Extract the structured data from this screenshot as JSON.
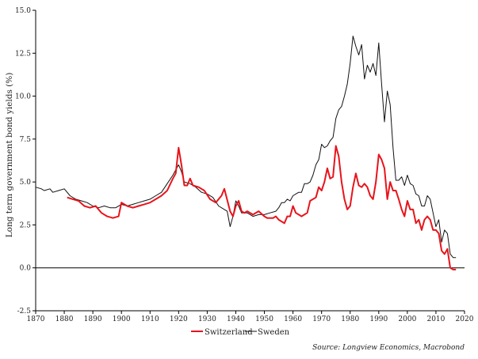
{
  "chart_data": {
    "type": "line",
    "title": "",
    "xlabel": "",
    "ylabel": "Long term government bond yields (%)",
    "xlim": [
      1870,
      2020
    ],
    "ylim": [
      -2.5,
      15.0
    ],
    "x_ticks": [
      1870,
      1880,
      1890,
      1900,
      1910,
      1920,
      1930,
      1940,
      1950,
      1960,
      1970,
      1980,
      1990,
      2000,
      2010,
      2020
    ],
    "y_ticks": [
      -2.5,
      0.0,
      2.5,
      5.0,
      7.5,
      10.0,
      12.5,
      15.0
    ],
    "y_tick_labels": [
      "-2.5",
      "0.0",
      "2.5",
      "5.0",
      "7.5",
      "10.0",
      "12.5",
      "15.0"
    ],
    "grid": false,
    "zero_line": true,
    "series": [
      {
        "name": "Switzerland",
        "color": "#e8141b",
        "x": [
          1881,
          1883,
          1885,
          1887,
          1889,
          1891,
          1893,
          1895,
          1897,
          1899,
          1900,
          1902,
          1904,
          1906,
          1908,
          1910,
          1912,
          1914,
          1916,
          1918,
          1919,
          1920,
          1921,
          1922,
          1923,
          1924,
          1925,
          1927,
          1929,
          1931,
          1933,
          1935,
          1936,
          1938,
          1939,
          1940,
          1941,
          1942,
          1943,
          1944,
          1946,
          1948,
          1950,
          1951,
          1952,
          1953,
          1954,
          1955,
          1956,
          1957,
          1958,
          1959,
          1960,
          1961,
          1962,
          1963,
          1964,
          1965,
          1966,
          1967,
          1968,
          1969,
          1970,
          1971,
          1972,
          1973,
          1974,
          1975,
          1976,
          1977,
          1978,
          1979,
          1980,
          1981,
          1982,
          1983,
          1984,
          1985,
          1986,
          1987,
          1988,
          1989,
          1990,
          1991,
          1992,
          1993,
          1994,
          1995,
          1996,
          1997,
          1998,
          1999,
          2000,
          2001,
          2002,
          2003,
          2004,
          2005,
          2006,
          2007,
          2008,
          2009,
          2010,
          2011,
          2012,
          2013,
          2014,
          2015,
          2016,
          2017
        ],
        "values": [
          4.1,
          4.0,
          3.9,
          3.6,
          3.5,
          3.6,
          3.2,
          3.0,
          2.9,
          3.0,
          3.8,
          3.6,
          3.5,
          3.6,
          3.7,
          3.8,
          4.0,
          4.2,
          4.5,
          5.2,
          5.5,
          7.0,
          6.0,
          4.8,
          4.8,
          5.2,
          4.8,
          4.7,
          4.5,
          4.0,
          3.8,
          4.2,
          4.6,
          3.3,
          3.0,
          3.6,
          3.9,
          3.3,
          3.2,
          3.3,
          3.1,
          3.3,
          3.0,
          2.9,
          2.9,
          2.9,
          3.0,
          2.8,
          2.7,
          2.6,
          3.0,
          3.0,
          3.6,
          3.2,
          3.1,
          3.0,
          3.1,
          3.2,
          3.9,
          4.0,
          4.1,
          4.7,
          4.5,
          5.0,
          5.8,
          5.2,
          5.3,
          7.1,
          6.5,
          5.0,
          4.0,
          3.4,
          3.6,
          4.7,
          5.5,
          4.8,
          4.7,
          4.9,
          4.7,
          4.2,
          4.0,
          5.0,
          6.6,
          6.3,
          5.8,
          4.0,
          5.0,
          4.5,
          4.5,
          4.0,
          3.4,
          3.0,
          3.9,
          3.4,
          3.4,
          2.6,
          2.8,
          2.2,
          2.8,
          3.0,
          2.8,
          2.2,
          2.2,
          2.0,
          1.0,
          0.8,
          1.1,
          0.0,
          -0.1,
          -0.1
        ]
      },
      {
        "name": "Sweden",
        "color": "#111111",
        "x": [
          1870,
          1872,
          1873,
          1875,
          1876,
          1878,
          1880,
          1882,
          1884,
          1886,
          1888,
          1890,
          1892,
          1894,
          1896,
          1898,
          1900,
          1902,
          1904,
          1906,
          1908,
          1910,
          1912,
          1914,
          1916,
          1918,
          1919,
          1920,
          1921,
          1922,
          1924,
          1926,
          1928,
          1930,
          1932,
          1934,
          1936,
          1937,
          1938,
          1939,
          1940,
          1941,
          1942,
          1944,
          1946,
          1948,
          1950,
          1952,
          1954,
          1955,
          1956,
          1957,
          1958,
          1959,
          1960,
          1961,
          1962,
          1963,
          1964,
          1965,
          1966,
          1967,
          1968,
          1969,
          1970,
          1971,
          1972,
          1973,
          1974,
          1975,
          1976,
          1977,
          1978,
          1979,
          1980,
          1981,
          1982,
          1983,
          1984,
          1985,
          1986,
          1987,
          1988,
          1989,
          1990,
          1991,
          1992,
          1993,
          1994,
          1995,
          1996,
          1997,
          1998,
          1999,
          2000,
          2001,
          2002,
          2003,
          2004,
          2005,
          2006,
          2007,
          2008,
          2009,
          2010,
          2011,
          2012,
          2013,
          2014,
          2015,
          2016,
          2017
        ],
        "values": [
          4.7,
          4.6,
          4.5,
          4.6,
          4.4,
          4.5,
          4.6,
          4.2,
          4.0,
          3.9,
          3.8,
          3.6,
          3.5,
          3.6,
          3.5,
          3.5,
          3.7,
          3.6,
          3.7,
          3.8,
          3.9,
          4.0,
          4.2,
          4.4,
          4.9,
          5.4,
          5.7,
          6.0,
          5.6,
          5.0,
          4.9,
          4.7,
          4.4,
          4.3,
          4.1,
          3.6,
          3.4,
          3.3,
          2.4,
          3.0,
          3.9,
          3.6,
          3.2,
          3.2,
          3.0,
          3.1,
          3.1,
          3.2,
          3.3,
          3.5,
          3.8,
          3.8,
          4.0,
          3.9,
          4.2,
          4.3,
          4.4,
          4.4,
          4.9,
          4.9,
          5.0,
          5.4,
          6.0,
          6.3,
          7.2,
          7.0,
          7.1,
          7.4,
          7.6,
          8.7,
          9.2,
          9.4,
          10.0,
          10.7,
          11.9,
          13.5,
          12.9,
          12.4,
          13.0,
          11.0,
          11.8,
          11.4,
          11.9,
          11.2,
          13.1,
          10.7,
          8.5,
          10.3,
          9.5,
          7.0,
          5.1,
          5.1,
          5.3,
          4.8,
          5.4,
          4.9,
          4.8,
          4.3,
          4.2,
          3.6,
          3.6,
          4.2,
          4.0,
          3.2,
          2.4,
          2.8,
          1.5,
          2.2,
          2.0,
          0.8,
          0.6,
          0.6
        ]
      }
    ],
    "legend": {
      "position": "bottom-center",
      "entries": [
        "Switzerland",
        "Sweden"
      ]
    },
    "source_note": "Source: Longview Economics, Macrobond"
  }
}
